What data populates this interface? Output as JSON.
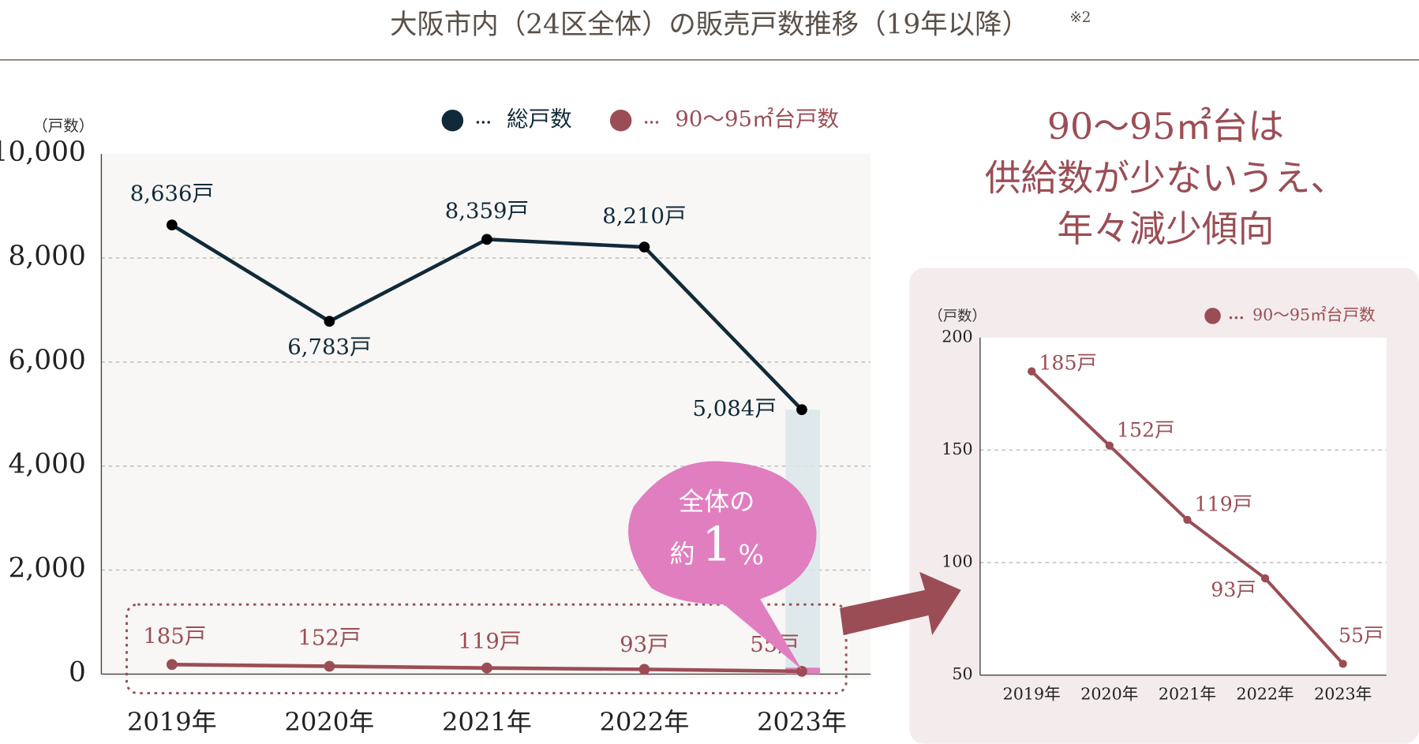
{
  "title": "大阪市内（24区全体）の販売戸数推移（19年以降）",
  "title_note": "※2",
  "chart_data": [
    {
      "type": "line",
      "y_label": "（戸数）",
      "categories": [
        "2019年",
        "2020年",
        "2021年",
        "2022年",
        "2023年"
      ],
      "series": [
        {
          "name": "総戸数",
          "color": "#112a3a",
          "values": [
            8636,
            6783,
            8359,
            8210,
            5084
          ],
          "value_labels": [
            "8,636戸",
            "6,783戸",
            "8,359戸",
            "8,210戸",
            "5,084戸"
          ]
        },
        {
          "name": "90〜95㎡台戸数",
          "color": "#9b4d55",
          "values": [
            185,
            152,
            119,
            93,
            55
          ],
          "value_labels": [
            "185戸",
            "152戸",
            "119戸",
            "93戸",
            "55戸"
          ]
        }
      ],
      "ylim": [
        0,
        10000
      ],
      "yticks": [
        0,
        {
          "value": 2000,
          "label": "2,000"
        },
        {
          "value": 4000,
          "label": "4,000"
        },
        {
          "value": 6000,
          "label": "6,000"
        },
        {
          "value": 8000,
          "label": "8,000"
        },
        {
          "value": 10000,
          "label": "10,000"
        }
      ],
      "grid": true,
      "legend": "top-right",
      "annotations": [
        "全体の",
        "約",
        "1",
        "%"
      ]
    },
    {
      "type": "line",
      "y_label": "（戸数）",
      "categories": [
        "2019年",
        "2020年",
        "2021年",
        "2022年",
        "2023年"
      ],
      "series": [
        {
          "name": "90〜95㎡台戸数",
          "color": "#9b4d55",
          "values": [
            185,
            152,
            119,
            93,
            55
          ],
          "value_labels": [
            "185戸",
            "152戸",
            "119戸",
            "93戸",
            "55戸"
          ]
        }
      ],
      "ylim": [
        50,
        200
      ],
      "yticks": [
        50,
        100,
        150,
        200
      ],
      "grid": true,
      "legend": "top-right",
      "annotations": [
        "90〜95㎡台は",
        "供給数が少ないうえ、",
        "年々減少傾向"
      ]
    }
  ]
}
